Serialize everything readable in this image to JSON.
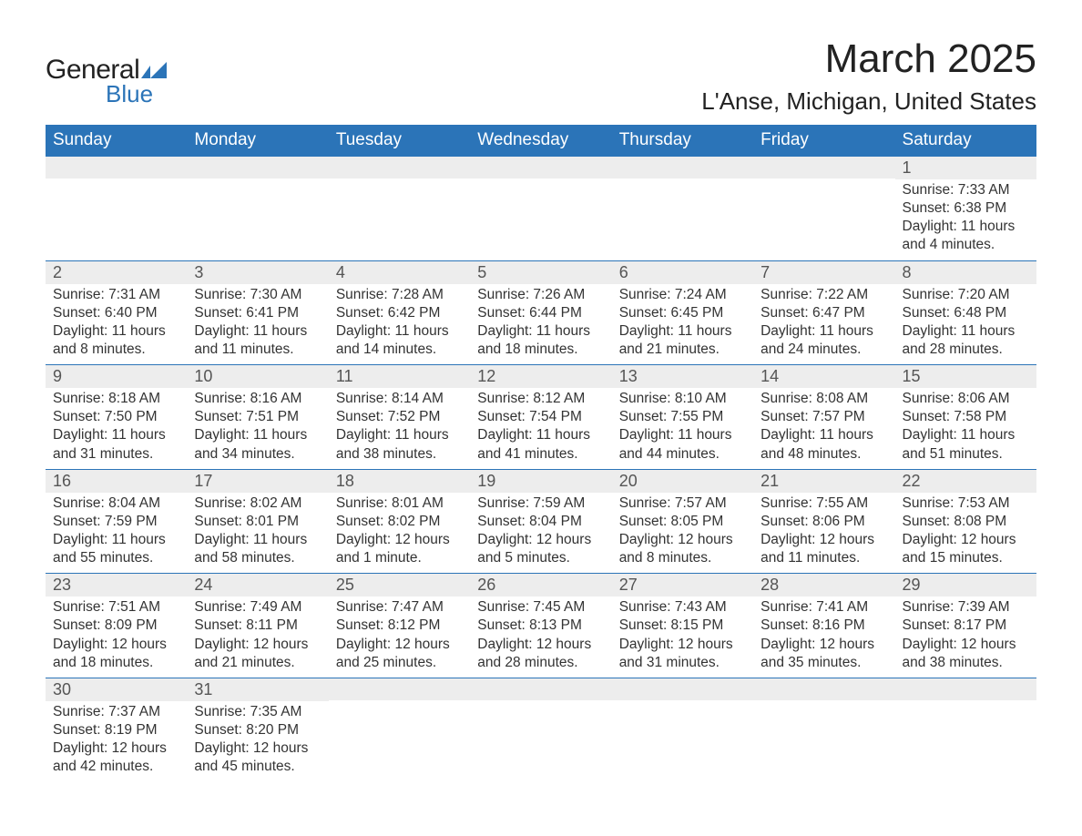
{
  "logo": {
    "text1": "General",
    "text2": "Blue",
    "shape_color": "#2b74b8"
  },
  "title": "March 2025",
  "location": "L'Anse, Michigan, United States",
  "colors": {
    "header_bg": "#2b74b8",
    "header_text": "#ffffff",
    "daynum_bg": "#ededed",
    "daynum_text": "#555555",
    "body_text": "#333333",
    "page_bg": "#ffffff",
    "row_divider": "#2b74b8"
  },
  "typography": {
    "title_fontsize": 44,
    "location_fontsize": 26,
    "header_fontsize": 19,
    "daynum_fontsize": 18,
    "body_fontsize": 15.5,
    "font_family": "Arial"
  },
  "type": "calendar-table",
  "day_headers": [
    "Sunday",
    "Monday",
    "Tuesday",
    "Wednesday",
    "Thursday",
    "Friday",
    "Saturday"
  ],
  "weeks": [
    [
      {
        "num": "",
        "sunrise": "",
        "sunset": "",
        "daylight": ""
      },
      {
        "num": "",
        "sunrise": "",
        "sunset": "",
        "daylight": ""
      },
      {
        "num": "",
        "sunrise": "",
        "sunset": "",
        "daylight": ""
      },
      {
        "num": "",
        "sunrise": "",
        "sunset": "",
        "daylight": ""
      },
      {
        "num": "",
        "sunrise": "",
        "sunset": "",
        "daylight": ""
      },
      {
        "num": "",
        "sunrise": "",
        "sunset": "",
        "daylight": ""
      },
      {
        "num": "1",
        "sunrise": "Sunrise: 7:33 AM",
        "sunset": "Sunset: 6:38 PM",
        "daylight": "Daylight: 11 hours and 4 minutes."
      }
    ],
    [
      {
        "num": "2",
        "sunrise": "Sunrise: 7:31 AM",
        "sunset": "Sunset: 6:40 PM",
        "daylight": "Daylight: 11 hours and 8 minutes."
      },
      {
        "num": "3",
        "sunrise": "Sunrise: 7:30 AM",
        "sunset": "Sunset: 6:41 PM",
        "daylight": "Daylight: 11 hours and 11 minutes."
      },
      {
        "num": "4",
        "sunrise": "Sunrise: 7:28 AM",
        "sunset": "Sunset: 6:42 PM",
        "daylight": "Daylight: 11 hours and 14 minutes."
      },
      {
        "num": "5",
        "sunrise": "Sunrise: 7:26 AM",
        "sunset": "Sunset: 6:44 PM",
        "daylight": "Daylight: 11 hours and 18 minutes."
      },
      {
        "num": "6",
        "sunrise": "Sunrise: 7:24 AM",
        "sunset": "Sunset: 6:45 PM",
        "daylight": "Daylight: 11 hours and 21 minutes."
      },
      {
        "num": "7",
        "sunrise": "Sunrise: 7:22 AM",
        "sunset": "Sunset: 6:47 PM",
        "daylight": "Daylight: 11 hours and 24 minutes."
      },
      {
        "num": "8",
        "sunrise": "Sunrise: 7:20 AM",
        "sunset": "Sunset: 6:48 PM",
        "daylight": "Daylight: 11 hours and 28 minutes."
      }
    ],
    [
      {
        "num": "9",
        "sunrise": "Sunrise: 8:18 AM",
        "sunset": "Sunset: 7:50 PM",
        "daylight": "Daylight: 11 hours and 31 minutes."
      },
      {
        "num": "10",
        "sunrise": "Sunrise: 8:16 AM",
        "sunset": "Sunset: 7:51 PM",
        "daylight": "Daylight: 11 hours and 34 minutes."
      },
      {
        "num": "11",
        "sunrise": "Sunrise: 8:14 AM",
        "sunset": "Sunset: 7:52 PM",
        "daylight": "Daylight: 11 hours and 38 minutes."
      },
      {
        "num": "12",
        "sunrise": "Sunrise: 8:12 AM",
        "sunset": "Sunset: 7:54 PM",
        "daylight": "Daylight: 11 hours and 41 minutes."
      },
      {
        "num": "13",
        "sunrise": "Sunrise: 8:10 AM",
        "sunset": "Sunset: 7:55 PM",
        "daylight": "Daylight: 11 hours and 44 minutes."
      },
      {
        "num": "14",
        "sunrise": "Sunrise: 8:08 AM",
        "sunset": "Sunset: 7:57 PM",
        "daylight": "Daylight: 11 hours and 48 minutes."
      },
      {
        "num": "15",
        "sunrise": "Sunrise: 8:06 AM",
        "sunset": "Sunset: 7:58 PM",
        "daylight": "Daylight: 11 hours and 51 minutes."
      }
    ],
    [
      {
        "num": "16",
        "sunrise": "Sunrise: 8:04 AM",
        "sunset": "Sunset: 7:59 PM",
        "daylight": "Daylight: 11 hours and 55 minutes."
      },
      {
        "num": "17",
        "sunrise": "Sunrise: 8:02 AM",
        "sunset": "Sunset: 8:01 PM",
        "daylight": "Daylight: 11 hours and 58 minutes."
      },
      {
        "num": "18",
        "sunrise": "Sunrise: 8:01 AM",
        "sunset": "Sunset: 8:02 PM",
        "daylight": "Daylight: 12 hours and 1 minute."
      },
      {
        "num": "19",
        "sunrise": "Sunrise: 7:59 AM",
        "sunset": "Sunset: 8:04 PM",
        "daylight": "Daylight: 12 hours and 5 minutes."
      },
      {
        "num": "20",
        "sunrise": "Sunrise: 7:57 AM",
        "sunset": "Sunset: 8:05 PM",
        "daylight": "Daylight: 12 hours and 8 minutes."
      },
      {
        "num": "21",
        "sunrise": "Sunrise: 7:55 AM",
        "sunset": "Sunset: 8:06 PM",
        "daylight": "Daylight: 12 hours and 11 minutes."
      },
      {
        "num": "22",
        "sunrise": "Sunrise: 7:53 AM",
        "sunset": "Sunset: 8:08 PM",
        "daylight": "Daylight: 12 hours and 15 minutes."
      }
    ],
    [
      {
        "num": "23",
        "sunrise": "Sunrise: 7:51 AM",
        "sunset": "Sunset: 8:09 PM",
        "daylight": "Daylight: 12 hours and 18 minutes."
      },
      {
        "num": "24",
        "sunrise": "Sunrise: 7:49 AM",
        "sunset": "Sunset: 8:11 PM",
        "daylight": "Daylight: 12 hours and 21 minutes."
      },
      {
        "num": "25",
        "sunrise": "Sunrise: 7:47 AM",
        "sunset": "Sunset: 8:12 PM",
        "daylight": "Daylight: 12 hours and 25 minutes."
      },
      {
        "num": "26",
        "sunrise": "Sunrise: 7:45 AM",
        "sunset": "Sunset: 8:13 PM",
        "daylight": "Daylight: 12 hours and 28 minutes."
      },
      {
        "num": "27",
        "sunrise": "Sunrise: 7:43 AM",
        "sunset": "Sunset: 8:15 PM",
        "daylight": "Daylight: 12 hours and 31 minutes."
      },
      {
        "num": "28",
        "sunrise": "Sunrise: 7:41 AM",
        "sunset": "Sunset: 8:16 PM",
        "daylight": "Daylight: 12 hours and 35 minutes."
      },
      {
        "num": "29",
        "sunrise": "Sunrise: 7:39 AM",
        "sunset": "Sunset: 8:17 PM",
        "daylight": "Daylight: 12 hours and 38 minutes."
      }
    ],
    [
      {
        "num": "30",
        "sunrise": "Sunrise: 7:37 AM",
        "sunset": "Sunset: 8:19 PM",
        "daylight": "Daylight: 12 hours and 42 minutes."
      },
      {
        "num": "31",
        "sunrise": "Sunrise: 7:35 AM",
        "sunset": "Sunset: 8:20 PM",
        "daylight": "Daylight: 12 hours and 45 minutes."
      },
      {
        "num": "",
        "sunrise": "",
        "sunset": "",
        "daylight": ""
      },
      {
        "num": "",
        "sunrise": "",
        "sunset": "",
        "daylight": ""
      },
      {
        "num": "",
        "sunrise": "",
        "sunset": "",
        "daylight": ""
      },
      {
        "num": "",
        "sunrise": "",
        "sunset": "",
        "daylight": ""
      },
      {
        "num": "",
        "sunrise": "",
        "sunset": "",
        "daylight": ""
      }
    ]
  ]
}
